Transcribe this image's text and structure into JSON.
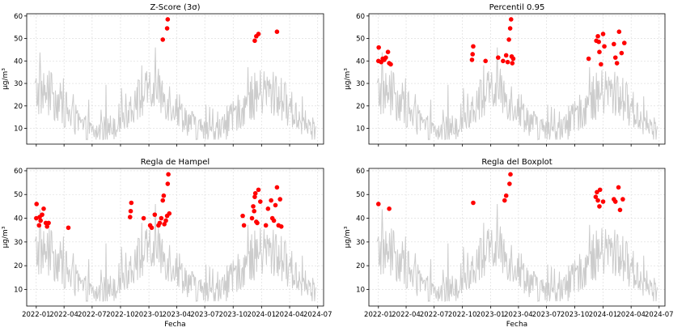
{
  "figure": {
    "xlabel": "Fecha",
    "ylabel": "µg/m³"
  },
  "chart_data": [
    {
      "type": "scatter",
      "title": "Z-Score (3σ)",
      "xlabel": "",
      "ylabel": "µg/m³",
      "xlim": [
        "2021-12-01",
        "2024-07-20"
      ],
      "ylim": [
        3,
        61
      ],
      "yticks": [
        10,
        20,
        30,
        40,
        50,
        60
      ],
      "xticks": [],
      "grid": true,
      "series": [
        {
          "color": "#cccccc",
          "style": "line"
        },
        {
          "color": "#ff0000",
          "style": "marker",
          "x": [
            "2023-02-15",
            "2023-03-01",
            "2023-03-03",
            "2023-12-10",
            "2023-12-15",
            "2023-12-22",
            "2024-02-20"
          ],
          "y": [
            49.5,
            54.5,
            58.5,
            49.0,
            51.0,
            52.0,
            53.0
          ]
        }
      ]
    },
    {
      "type": "scatter",
      "title": "Percentil 0.95",
      "xlabel": "",
      "ylabel": "µg/m³",
      "xlim": [
        "2021-12-01",
        "2024-07-20"
      ],
      "ylim": [
        3,
        61
      ],
      "yticks": [
        10,
        20,
        30,
        40,
        50,
        60
      ],
      "xticks": [],
      "grid": true,
      "series": [
        {
          "color": "#cccccc",
          "style": "line"
        },
        {
          "color": "#ff0000",
          "style": "marker",
          "x": [
            "2022-01-01",
            "2022-01-02",
            "2022-01-10",
            "2022-01-15",
            "2022-01-20",
            "2022-01-25",
            "2022-02-01",
            "2022-02-05",
            "2022-02-10",
            "2022-11-01",
            "2022-11-03",
            "2022-11-05",
            "2022-12-15",
            "2023-01-25",
            "2023-02-10",
            "2023-02-20",
            "2023-02-25",
            "2023-03-01",
            "2023-03-05",
            "2023-03-08",
            "2023-03-10",
            "2023-03-12",
            "2023-03-15",
            "2023-11-15",
            "2023-12-10",
            "2023-12-15",
            "2023-12-18",
            "2023-12-20",
            "2023-12-25",
            "2024-01-01",
            "2024-01-05",
            "2024-02-05",
            "2024-02-10",
            "2024-02-15",
            "2024-02-22",
            "2024-03-01",
            "2024-03-10"
          ],
          "y": [
            40.0,
            46.0,
            39.5,
            41.0,
            40.5,
            41.5,
            44.0,
            39.0,
            38.5,
            40.5,
            43.0,
            46.5,
            40.0,
            41.5,
            40.0,
            42.5,
            39.5,
            49.5,
            54.5,
            58.5,
            42.0,
            39.0,
            41.0,
            41.0,
            49.0,
            51.0,
            48.5,
            44.0,
            38.5,
            52.0,
            46.5,
            47.5,
            41.5,
            39.0,
            53.0,
            43.5,
            48.0
          ]
        }
      ]
    },
    {
      "type": "scatter",
      "title": "Regla de Hampel",
      "xlabel": "Fecha",
      "ylabel": "µg/m³",
      "xlim": [
        "2021-12-01",
        "2024-07-20"
      ],
      "ylim": [
        3,
        61
      ],
      "yticks": [
        10,
        20,
        30,
        40,
        50,
        60
      ],
      "xticks": [
        "2022-01",
        "2022-04",
        "2022-07",
        "2022-10",
        "2023-01",
        "2023-04",
        "2023-07",
        "2023-10",
        "2024-01",
        "2024-04",
        "2024-07"
      ],
      "grid": true,
      "series": [
        {
          "color": "#cccccc",
          "style": "line"
        },
        {
          "color": "#ff0000",
          "style": "marker",
          "x": [
            "2022-01-01",
            "2022-01-02",
            "2022-01-10",
            "2022-01-12",
            "2022-01-15",
            "2022-01-20",
            "2022-01-25",
            "2022-02-01",
            "2022-02-05",
            "2022-02-10",
            "2022-04-15",
            "2022-11-01",
            "2022-11-03",
            "2022-11-05",
            "2022-12-15",
            "2023-01-05",
            "2023-01-10",
            "2023-01-20",
            "2023-02-01",
            "2023-02-05",
            "2023-02-10",
            "2023-02-15",
            "2023-02-18",
            "2023-02-20",
            "2023-02-25",
            "2023-03-01",
            "2023-03-03",
            "2023-03-05",
            "2023-03-08",
            "2023-11-01",
            "2023-11-05",
            "2023-12-01",
            "2023-12-05",
            "2023-12-08",
            "2023-12-10",
            "2023-12-12",
            "2023-12-15",
            "2023-12-18",
            "2023-12-22",
            "2023-12-28",
            "2024-01-15",
            "2024-01-22",
            "2024-02-01",
            "2024-02-05",
            "2024-02-10",
            "2024-02-15",
            "2024-02-20",
            "2024-02-25",
            "2024-03-01",
            "2024-03-05"
          ],
          "y": [
            40.0,
            46.0,
            37.0,
            40.5,
            39.0,
            41.5,
            44.0,
            38.0,
            36.5,
            38.0,
            36.0,
            40.5,
            43.0,
            46.5,
            40.0,
            37.0,
            36.0,
            41.5,
            37.0,
            38.0,
            40.0,
            47.5,
            49.5,
            37.5,
            39.0,
            41.0,
            54.5,
            58.5,
            42.0,
            41.0,
            37.0,
            40.0,
            45.0,
            43.0,
            49.0,
            50.5,
            38.5,
            38.0,
            52.0,
            47.0,
            37.0,
            44.0,
            47.5,
            40.0,
            39.0,
            45.5,
            53.0,
            37.0,
            48.0,
            36.5
          ]
        }
      ]
    },
    {
      "type": "scatter",
      "title": "Regla del Boxplot",
      "xlabel": "Fecha",
      "ylabel": "µg/m³",
      "xlim": [
        "2021-12-01",
        "2024-07-20"
      ],
      "ylim": [
        3,
        61
      ],
      "yticks": [
        10,
        20,
        30,
        40,
        50,
        60
      ],
      "xticks": [
        "2022-01",
        "2022-04",
        "2022-07",
        "2022-10",
        "2023-01",
        "2023-04",
        "2023-07",
        "2023-10",
        "2024-01",
        "2024-04",
        "2024-07"
      ],
      "grid": true,
      "series": [
        {
          "color": "#cccccc",
          "style": "line"
        },
        {
          "color": "#ff0000",
          "style": "marker",
          "x": [
            "2022-01-01",
            "2022-02-05",
            "2022-11-05",
            "2023-02-15",
            "2023-02-20",
            "2023-03-03",
            "2023-03-06",
            "2023-12-08",
            "2023-12-12",
            "2023-12-15",
            "2023-12-20",
            "2023-12-22",
            "2024-01-01",
            "2024-02-05",
            "2024-02-10",
            "2024-02-20",
            "2024-02-25",
            "2024-03-05"
          ],
          "y": [
            46.0,
            44.0,
            46.5,
            47.5,
            49.5,
            54.5,
            58.5,
            49.0,
            51.0,
            47.5,
            45.0,
            52.0,
            47.0,
            48.0,
            47.0,
            53.0,
            43.5,
            48.0
          ]
        }
      ]
    }
  ]
}
